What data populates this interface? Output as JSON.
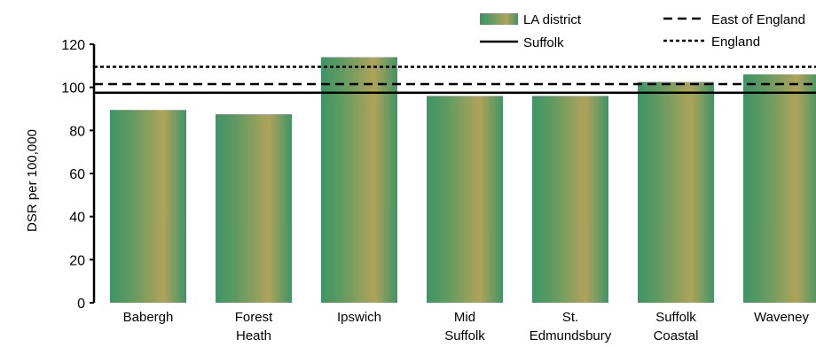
{
  "chart_data": {
    "type": "bar",
    "ylabel": "DSR per 100,000",
    "ylim": [
      0,
      120
    ],
    "yticks": [
      0,
      20,
      40,
      60,
      80,
      100,
      120
    ],
    "categories": [
      [
        "Babergh"
      ],
      [
        "Forest",
        "Heath"
      ],
      [
        "Ipswich"
      ],
      [
        "Mid",
        "Suffolk"
      ],
      [
        "St.",
        "Edmundsbury"
      ],
      [
        "Suffolk",
        "Coastal"
      ],
      [
        "Waveney"
      ]
    ],
    "series": [
      {
        "name": "LA district",
        "values": [
          89.5,
          87.5,
          114,
          96,
          96,
          102.5,
          106
        ]
      }
    ],
    "reference_lines": [
      {
        "name": "Suffolk",
        "value": 97.5,
        "style": "solid"
      },
      {
        "name": "East of England",
        "value": 101.5,
        "style": "dashed"
      },
      {
        "name": "England",
        "value": 109.5,
        "style": "dotted"
      }
    ],
    "legend": {
      "placement": "top-right",
      "items": [
        "LA district",
        "Suffolk",
        "East of England",
        "England"
      ]
    },
    "grid": false,
    "colors": {
      "bar_edge": "#3f9466",
      "bar_center": "#b0a35a",
      "line": "#000000"
    }
  }
}
